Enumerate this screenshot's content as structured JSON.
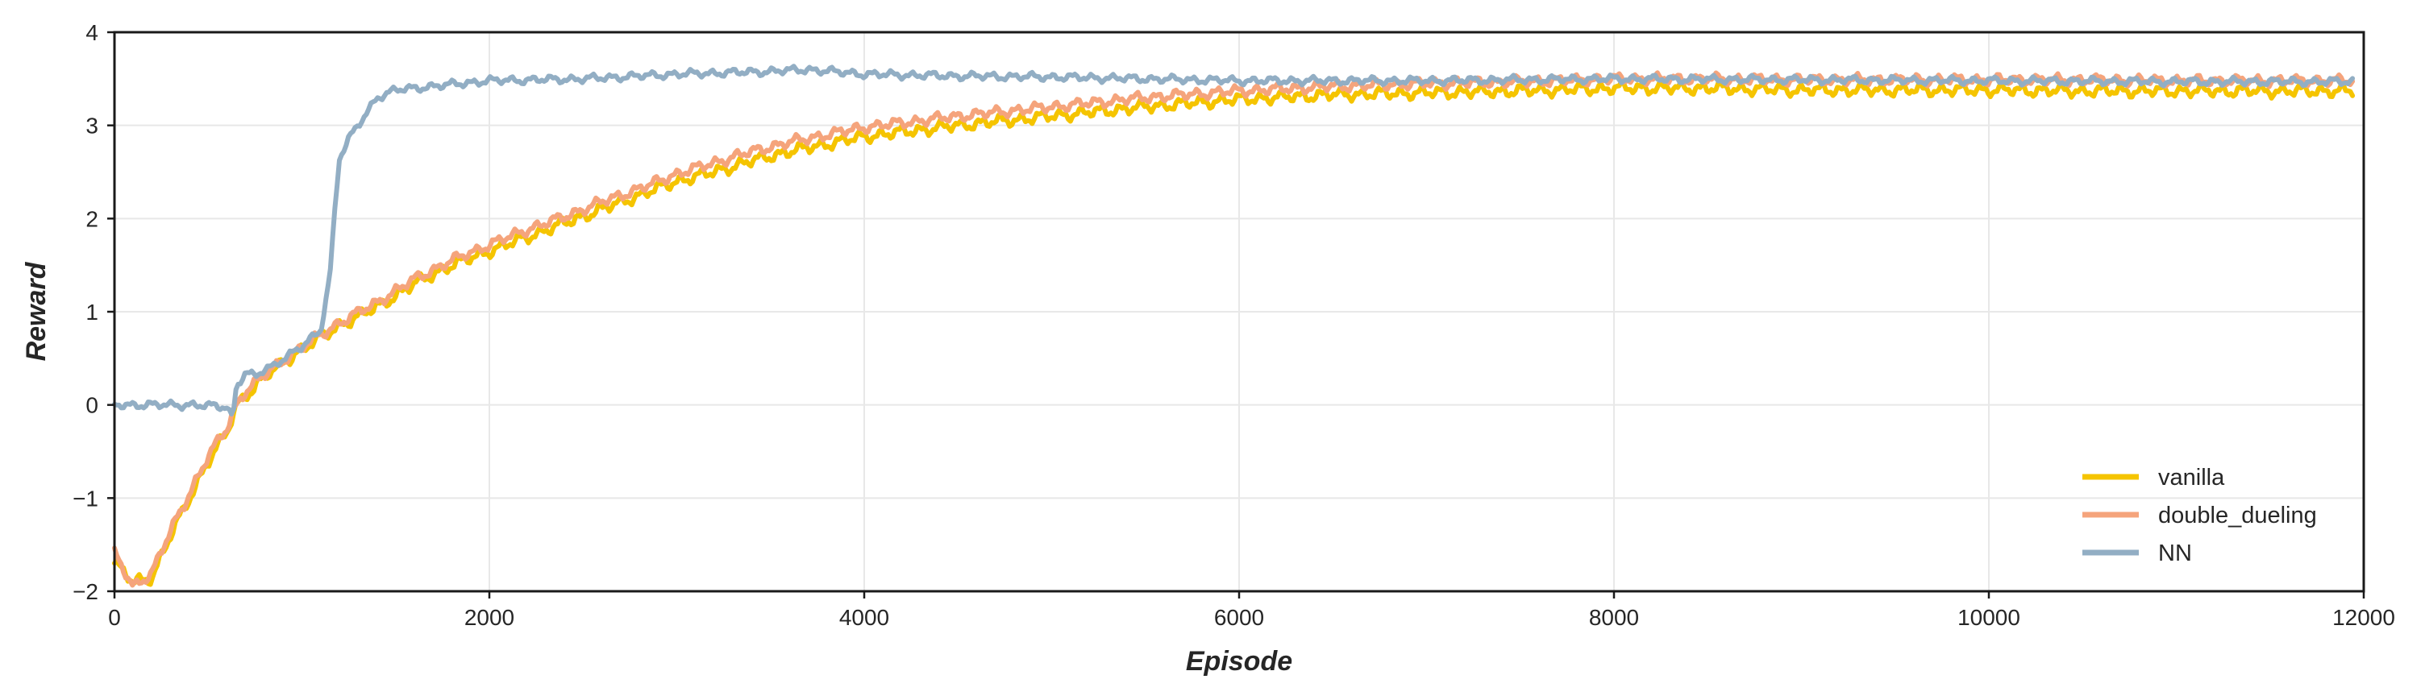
{
  "chart_data": {
    "type": "line",
    "title": "",
    "xlabel": "Episode",
    "ylabel": "Reward",
    "xlim": [
      0,
      12000
    ],
    "ylim": [
      -2,
      4
    ],
    "x_ticks": [
      "0",
      "2000",
      "4000",
      "6000",
      "8000",
      "10000",
      "12000"
    ],
    "y_ticks": [
      "−2",
      "−1",
      "0",
      "1",
      "2",
      "3",
      "4"
    ],
    "grid": true,
    "legend_position": "lower-right",
    "series": [
      {
        "name": "vanilla",
        "color": "#F5C400",
        "oscillation": 0.08,
        "x": [
          0,
          100,
          200,
          300,
          400,
          500,
          600,
          650,
          700,
          800,
          900,
          1000,
          1100,
          1200,
          1400,
          1600,
          1800,
          2000,
          2200,
          2400,
          2600,
          2800,
          3000,
          3200,
          3400,
          3600,
          3800,
          4000,
          4500,
          5000,
          5500,
          6000,
          6500,
          7000,
          7500,
          8000,
          8500,
          9000,
          9500,
          10000,
          10500,
          11000,
          11500,
          11950
        ],
        "y": [
          -1.7,
          -1.9,
          -1.85,
          -1.4,
          -1.0,
          -0.6,
          -0.3,
          0.0,
          0.1,
          0.3,
          0.45,
          0.6,
          0.72,
          0.85,
          1.05,
          1.3,
          1.5,
          1.65,
          1.8,
          1.95,
          2.1,
          2.25,
          2.4,
          2.5,
          2.62,
          2.72,
          2.8,
          2.88,
          3.0,
          3.1,
          3.2,
          3.28,
          3.33,
          3.35,
          3.37,
          3.4,
          3.4,
          3.38,
          3.38,
          3.38,
          3.37,
          3.37,
          3.37,
          3.37
        ]
      },
      {
        "name": "double_dueling",
        "color": "#F5A47C",
        "oscillation": 0.07,
        "x": [
          0,
          100,
          200,
          300,
          400,
          500,
          600,
          650,
          700,
          800,
          900,
          1000,
          1100,
          1200,
          1400,
          1600,
          1800,
          2000,
          2200,
          2400,
          2600,
          2800,
          3000,
          3200,
          3400,
          3600,
          3800,
          4000,
          4500,
          5000,
          5500,
          6000,
          6500,
          7000,
          7500,
          8000,
          8500,
          9000,
          9500,
          10000,
          10500,
          11000,
          11500,
          11950
        ],
        "y": [
          -1.6,
          -1.95,
          -1.8,
          -1.35,
          -0.95,
          -0.55,
          -0.25,
          0.0,
          0.15,
          0.32,
          0.48,
          0.62,
          0.75,
          0.88,
          1.1,
          1.35,
          1.55,
          1.72,
          1.88,
          2.02,
          2.18,
          2.32,
          2.48,
          2.6,
          2.72,
          2.82,
          2.9,
          2.98,
          3.1,
          3.2,
          3.3,
          3.37,
          3.42,
          3.45,
          3.47,
          3.5,
          3.5,
          3.49,
          3.49,
          3.49,
          3.49,
          3.48,
          3.48,
          3.48
        ]
      },
      {
        "name": "NN",
        "color": "#92AEC4",
        "oscillation": 0.05,
        "x": [
          0,
          200,
          400,
          600,
          630,
          650,
          700,
          750,
          800,
          850,
          900,
          1000,
          1100,
          1150,
          1180,
          1200,
          1250,
          1300,
          1350,
          1400,
          1500,
          1700,
          2000,
          2500,
          3000,
          3500,
          3700,
          4000,
          4500,
          5000,
          5500,
          6000,
          7000,
          8000,
          9000,
          10000,
          11000,
          11950
        ],
        "y": [
          0.0,
          0.0,
          0.0,
          -0.02,
          -0.15,
          0.2,
          0.35,
          0.3,
          0.38,
          0.42,
          0.5,
          0.62,
          0.8,
          1.4,
          2.2,
          2.65,
          2.85,
          3.0,
          3.15,
          3.3,
          3.38,
          3.42,
          3.48,
          3.5,
          3.55,
          3.58,
          3.6,
          3.55,
          3.53,
          3.52,
          3.5,
          3.48,
          3.48,
          3.5,
          3.49,
          3.48,
          3.47,
          3.47
        ]
      }
    ]
  }
}
